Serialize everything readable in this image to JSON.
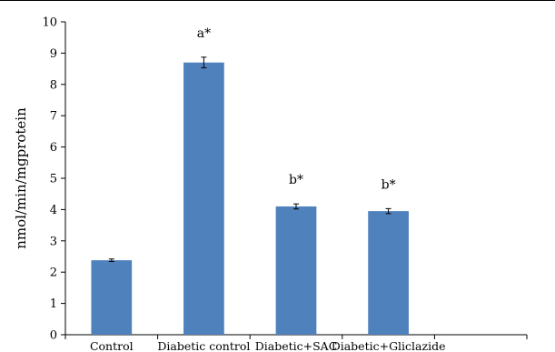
{
  "chart_data": {
    "type": "bar",
    "title": "",
    "xlabel": "",
    "ylabel": "nmol/min/mgprotein",
    "categories": [
      "Control",
      "Diabetic control",
      "Diabetic+SAC",
      "Diabetic+Gliclazide"
    ],
    "values": [
      2.38,
      8.7,
      4.1,
      3.95
    ],
    "errors": [
      0.04,
      0.17,
      0.08,
      0.08
    ],
    "data_labels": [
      "",
      "a*",
      "b*",
      "b*"
    ],
    "ylim": [
      0,
      10
    ],
    "yticks": [
      0,
      1,
      2,
      3,
      4,
      5,
      6,
      7,
      8,
      9,
      10
    ],
    "grid": false,
    "legend": "none",
    "bar_color": "#4f81bd"
  }
}
